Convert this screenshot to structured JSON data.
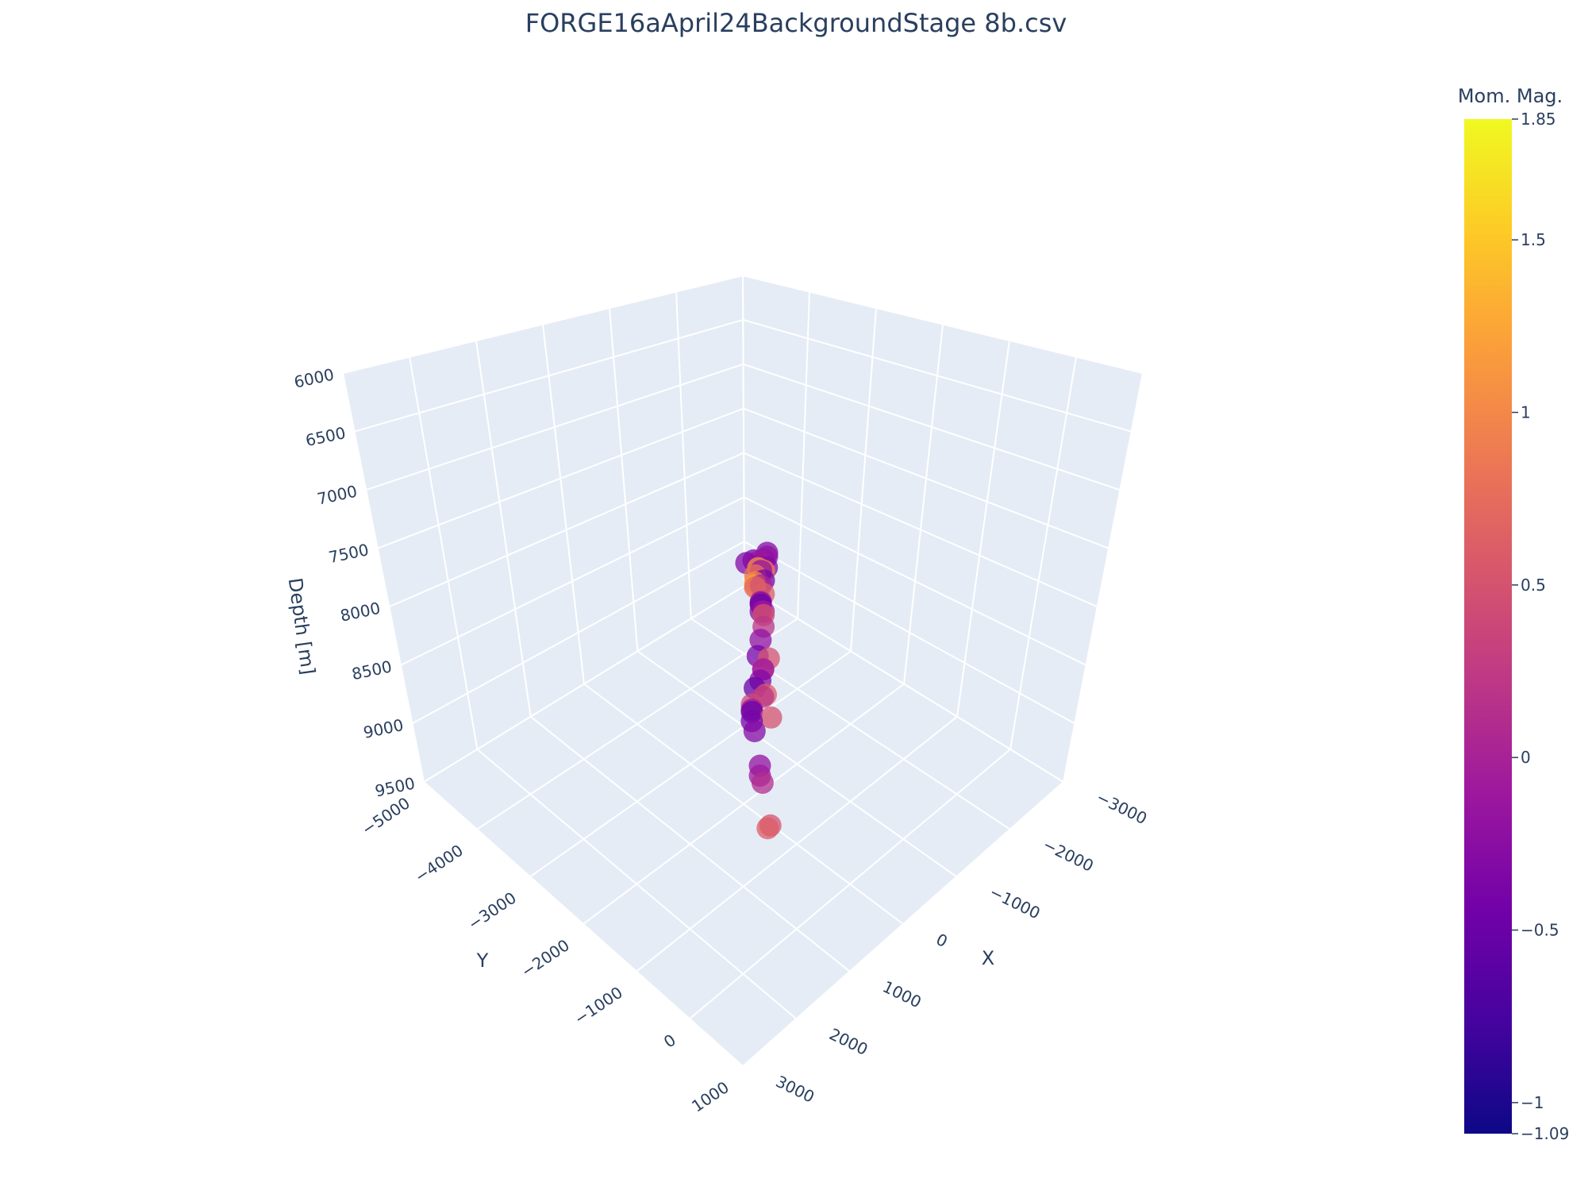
{
  "chart_data": {
    "type": "scatter3d",
    "title": "FORGE16aApril24BackgroundStage 8b.csv",
    "axes": {
      "x": {
        "label": "X",
        "range": [
          -3000,
          3000
        ],
        "ticks": [
          "−3000",
          "−2000",
          "−1000",
          "0",
          "1000",
          "2000",
          "3000"
        ]
      },
      "y": {
        "label": "Y",
        "range": [
          -5000,
          1000
        ],
        "ticks": [
          "−5000",
          "−4000",
          "−3000",
          "−2000",
          "−1000",
          "0",
          "1000"
        ]
      },
      "z": {
        "label": "Depth [m]",
        "range": [
          6000,
          9500
        ],
        "reversed": true,
        "ticks": [
          "6000",
          "6500",
          "7000",
          "7500",
          "8000",
          "8500",
          "9000",
          "9500"
        ]
      }
    },
    "colorbar": {
      "title": "Mom. Mag.",
      "min": -1.09,
      "max": 1.85,
      "ticks": [
        "−1.09",
        "−1",
        "−0.5",
        "0",
        "0.5",
        "1",
        "1.5",
        "1.85"
      ],
      "colorscale": "plasma"
    },
    "grid": true,
    "points": [
      {
        "x": -1000,
        "y": -2600,
        "z": 7950,
        "mag": -0.3
      },
      {
        "x": -900,
        "y": -2550,
        "z": 7980,
        "mag": -0.2
      },
      {
        "x": -750,
        "y": -2500,
        "z": 7960,
        "mag": -0.1
      },
      {
        "x": -650,
        "y": -2480,
        "z": 7930,
        "mag": -0.4
      },
      {
        "x": -500,
        "y": -2450,
        "z": 7920,
        "mag": -0.3
      },
      {
        "x": -1100,
        "y": -2700,
        "z": 8020,
        "mag": -0.2
      },
      {
        "x": -850,
        "y": -2500,
        "z": 8050,
        "mag": 0.9
      },
      {
        "x": -800,
        "y": -2550,
        "z": 8030,
        "mag": 1.1
      },
      {
        "x": -700,
        "y": -2500,
        "z": 8060,
        "mag": 0.8
      },
      {
        "x": -600,
        "y": -2400,
        "z": 8080,
        "mag": 1.0
      },
      {
        "x": -550,
        "y": -2350,
        "z": 8100,
        "mag": 0.7
      },
      {
        "x": -650,
        "y": -2450,
        "z": 8120,
        "mag": 1.2
      },
      {
        "x": -900,
        "y": -2600,
        "z": 8080,
        "mag": -0.2
      },
      {
        "x": -750,
        "y": -2450,
        "z": 8140,
        "mag": 0.0
      },
      {
        "x": -1200,
        "y": -2800,
        "z": 8150,
        "mag": -0.3
      },
      {
        "x": -1150,
        "y": -2800,
        "z": 8250,
        "mag": -0.4
      },
      {
        "x": -1050,
        "y": -2700,
        "z": 8320,
        "mag": 0.6
      },
      {
        "x": -950,
        "y": -2650,
        "z": 8350,
        "mag": 0.3
      },
      {
        "x": -1000,
        "y": -2700,
        "z": 8380,
        "mag": -0.3
      },
      {
        "x": -1050,
        "y": -2750,
        "z": 8420,
        "mag": -0.5
      },
      {
        "x": -950,
        "y": -2600,
        "z": 8450,
        "mag": 0.5
      },
      {
        "x": -900,
        "y": -2550,
        "z": 8400,
        "mag": -0.1
      },
      {
        "x": -1100,
        "y": -2800,
        "z": 8500,
        "mag": -0.3
      },
      {
        "x": -850,
        "y": -2500,
        "z": 8500,
        "mag": 0.2
      },
      {
        "x": -700,
        "y": -2400,
        "z": 8550,
        "mag": -0.2
      },
      {
        "x": -550,
        "y": -2300,
        "z": 8620,
        "mag": -0.4
      },
      {
        "x": -600,
        "y": -2250,
        "z": 8720,
        "mag": 0.4
      },
      {
        "x": -550,
        "y": -2200,
        "z": 8700,
        "mag": -0.1
      },
      {
        "x": -450,
        "y": -2150,
        "z": 8750,
        "mag": -0.3
      },
      {
        "x": -300,
        "y": -2100,
        "z": 8760,
        "mag": -0.5
      },
      {
        "x": -550,
        "y": -2150,
        "z": 8880,
        "mag": 0.6
      },
      {
        "x": -450,
        "y": -2100,
        "z": 8860,
        "mag": 0.2
      },
      {
        "x": -950,
        "y": -2500,
        "z": 8780,
        "mag": 0.5
      },
      {
        "x": -100,
        "y": -1950,
        "z": 8800,
        "mag": 0.4
      },
      {
        "x": -150,
        "y": -2000,
        "z": 8860,
        "mag": -0.1
      },
      {
        "x": -200,
        "y": -2050,
        "z": 8900,
        "mag": -0.5
      },
      {
        "x": -100,
        "y": -1950,
        "z": 8920,
        "mag": -0.4
      },
      {
        "x": -100,
        "y": -1900,
        "z": 8980,
        "mag": -0.3
      },
      {
        "x": -650,
        "y": -2150,
        "z": 9080,
        "mag": 0.5
      },
      {
        "x": 0,
        "y": -1700,
        "z": 9150,
        "mag": -0.2
      },
      {
        "x": 200,
        "y": -1500,
        "z": 9120,
        "mag": -0.1
      },
      {
        "x": 150,
        "y": -1500,
        "z": 9180,
        "mag": 0.1
      },
      {
        "x": 300,
        "y": -1200,
        "z": 9350,
        "mag": 0.5
      },
      {
        "x": 300,
        "y": -1250,
        "z": 9380,
        "mag": 0.6
      }
    ]
  }
}
